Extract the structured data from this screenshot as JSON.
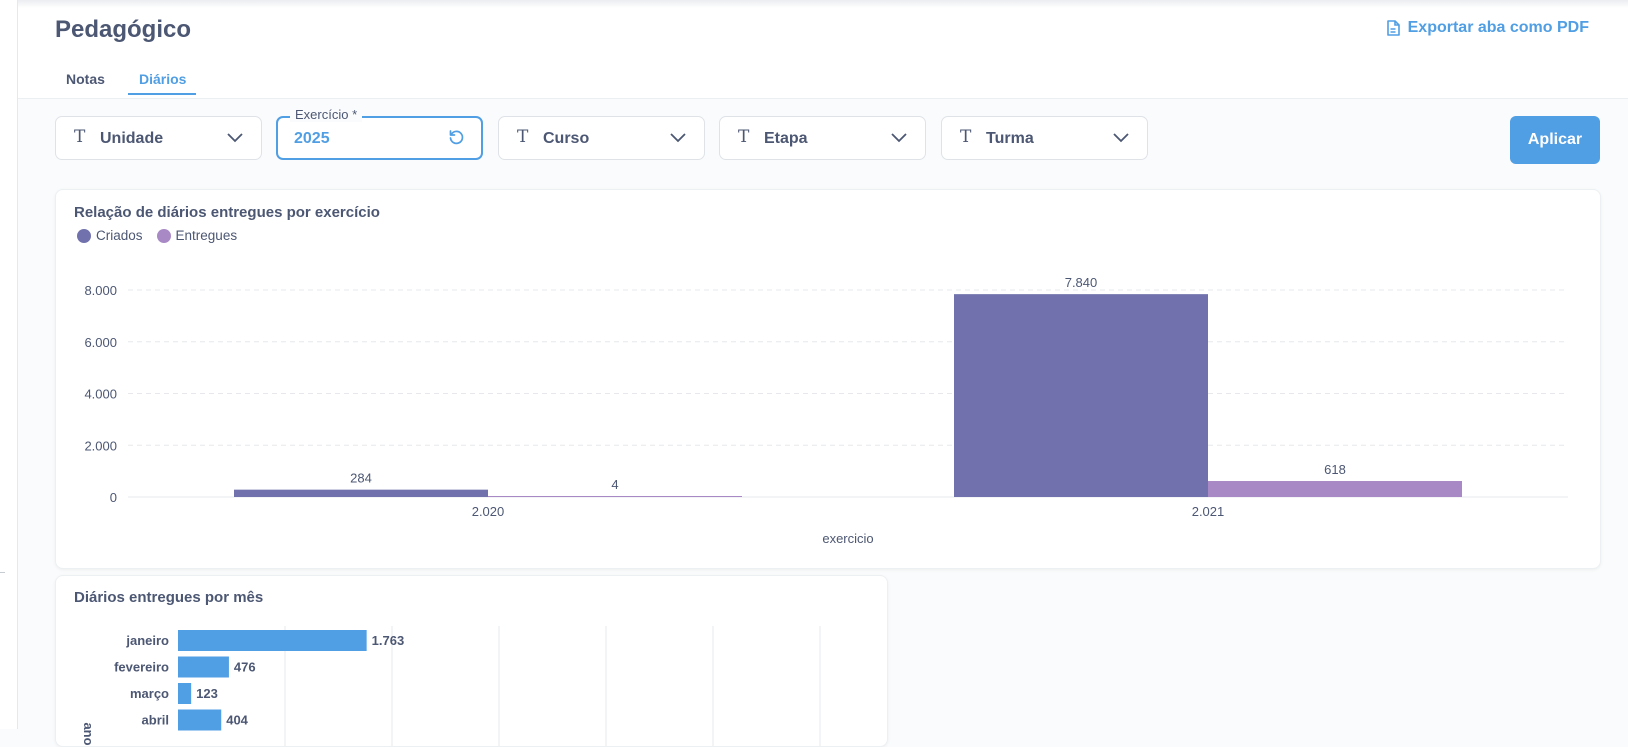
{
  "header": {
    "title": "Pedagógico",
    "export_label": "Exportar aba como PDF",
    "tabs": [
      {
        "label": "Notas"
      },
      {
        "label": "Diários"
      }
    ]
  },
  "filters": {
    "unidade": "Unidade",
    "exercicio": {
      "label": "Exercício *",
      "value": "2025"
    },
    "curso": "Curso",
    "etapa": "Etapa",
    "turma": "Turma",
    "apply_label": "Aplicar"
  },
  "colors": {
    "criados": "#7172ad",
    "entregues": "#a989c5",
    "accent": "#509ee3"
  },
  "chart_data": [
    {
      "type": "bar",
      "title": "Relação de diários entregues por exercício",
      "xlabel": "exercicio",
      "ylabel": "",
      "categories": [
        "2.020",
        "2.021"
      ],
      "series": [
        {
          "name": "Criados",
          "values": [
            284,
            7840
          ],
          "labels": [
            "284",
            "7.840"
          ]
        },
        {
          "name": "Entregues",
          "values": [
            4,
            618
          ],
          "labels": [
            "4",
            "618"
          ]
        }
      ],
      "ylim": [
        0,
        8000
      ],
      "yticks": [
        0,
        2000,
        4000,
        6000,
        8000
      ],
      "ytick_labels": [
        "0",
        "2.000",
        "4.000",
        "6.000",
        "8.000"
      ],
      "grid": true,
      "legend_position": "top-left"
    },
    {
      "type": "bar",
      "orientation": "horizontal",
      "title": "Diários entregues por mês",
      "ylabel": "ano",
      "categories": [
        "janeiro",
        "fevereiro",
        "março",
        "abril"
      ],
      "values": [
        1763,
        476,
        123,
        404
      ],
      "labels": [
        "1.763",
        "476",
        "123",
        "404"
      ],
      "xlim": [
        0,
        6000
      ],
      "grid": true
    }
  ]
}
